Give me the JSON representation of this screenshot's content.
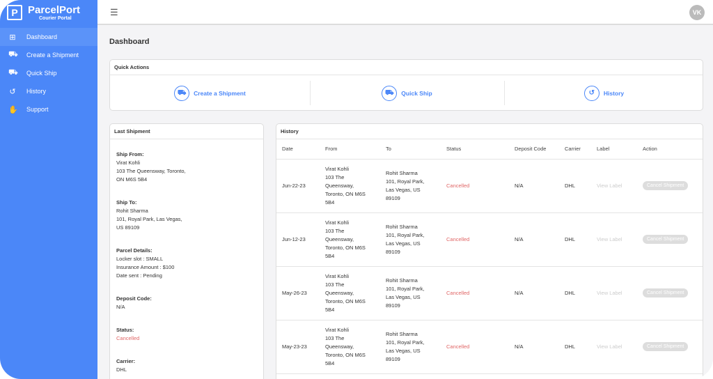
{
  "brand": {
    "name": "ParcelPort",
    "subtitle": "Courier Portal"
  },
  "nav": [
    {
      "label": "Dashboard",
      "icon": "windows-icon"
    },
    {
      "label": "Create a Shipment",
      "icon": "truck-icon"
    },
    {
      "label": "Quick Ship",
      "icon": "fast-truck-icon"
    },
    {
      "label": "History",
      "icon": "history-icon"
    },
    {
      "label": "Support",
      "icon": "handshake-icon"
    }
  ],
  "user": {
    "initials": "VK"
  },
  "page_title": "Dashboard",
  "quick_actions": {
    "title": "Quick Actions",
    "items": [
      {
        "label": "Create a Shipment"
      },
      {
        "label": "Quick Ship"
      },
      {
        "label": "History"
      }
    ]
  },
  "last_shipment": {
    "title": "Last Shipment",
    "ship_from_label": "Ship From:",
    "ship_from": [
      "Virat Kohli",
      "103 The Queensway, Toronto,",
      "ON M6S 5B4"
    ],
    "ship_to_label": "Ship To:",
    "ship_to": [
      "Rohit Sharma",
      "101, Royal Park, Las Vegas,",
      "US 89109"
    ],
    "parcel_label": "Parcel Details:",
    "parcel": [
      "Locker slot : SMALL",
      "Insurance Amount : $100",
      "Date sent : Pending"
    ],
    "deposit_label": "Deposit Code:",
    "deposit": "N/A",
    "status_label": "Status:",
    "status": "Cancelled",
    "carrier_label": "Carrier:",
    "carrier": "DHL"
  },
  "history": {
    "title": "History",
    "columns": [
      "Date",
      "From",
      "To",
      "Status",
      "Deposit Code",
      "Carrier",
      "Label",
      "Action"
    ],
    "rows": [
      {
        "date": "Jun-22-23",
        "from": [
          "Virat Kohli",
          "103 The",
          "Queensway,",
          "Toronto, ON M6S",
          "5B4"
        ],
        "to": [
          "Rohit Sharma",
          "101, Royal Park,",
          "Las Vegas, US",
          "89109"
        ],
        "status": "Cancelled",
        "deposit": "N/A",
        "carrier": "DHL",
        "label": "View Label",
        "action": "Cancel Shipment"
      },
      {
        "date": "Jun-12-23",
        "from": [
          "Virat Kohli",
          "103 The",
          "Queensway,",
          "Toronto, ON M6S",
          "5B4"
        ],
        "to": [
          "Rohit Sharma",
          "101, Royal Park,",
          "Las Vegas, US",
          "89109"
        ],
        "status": "Cancelled",
        "deposit": "N/A",
        "carrier": "DHL",
        "label": "View Label",
        "action": "Cancel Shipment"
      },
      {
        "date": "May-26-23",
        "from": [
          "Virat Kohli",
          "103 The",
          "Queensway,",
          "Toronto, ON M6S",
          "5B4"
        ],
        "to": [
          "Rohit Sharma",
          "101, Royal Park,",
          "Las Vegas, US",
          "89109"
        ],
        "status": "Cancelled",
        "deposit": "N/A",
        "carrier": "DHL",
        "label": "View Label",
        "action": "Cancel Shipment"
      },
      {
        "date": "May-23-23",
        "from": [
          "Virat Kohli",
          "103 The",
          "Queensway,",
          "Toronto, ON M6S",
          "5B4"
        ],
        "to": [
          "Rohit Sharma",
          "101, Royal Park,",
          "Las Vegas, US",
          "89109"
        ],
        "status": "Cancelled",
        "deposit": "N/A",
        "carrier": "DHL",
        "label": "View Label",
        "action": "Cancel Shipment"
      }
    ]
  }
}
